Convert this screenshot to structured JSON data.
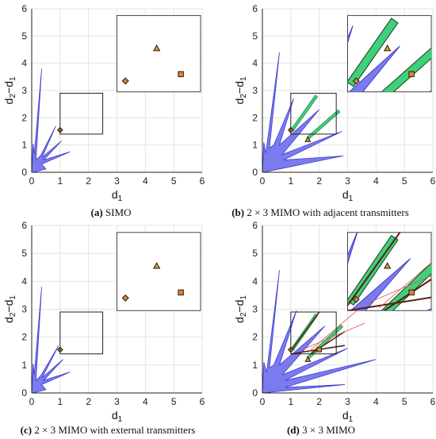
{
  "figure": {
    "captions": [
      {
        "letter": "(a)",
        "text": "SIMO"
      },
      {
        "letter": "(b)",
        "text": "2 × 3 MIMO with adjacent transmitters"
      },
      {
        "letter": "(c)",
        "text": "2 × 3 MIMO with external transmitters"
      },
      {
        "letter": "(d)",
        "text": "3 × 3 MIMO"
      }
    ]
  },
  "chart_data": [
    {
      "panel": "a",
      "type": "area",
      "xlabel": {
        "main": "d",
        "sub": "1"
      },
      "ylabel": {
        "main": "d",
        "sub": "2",
        "mid": "−d",
        "sub2": "1"
      },
      "xlim": [
        0,
        6
      ],
      "ylim": [
        0,
        6
      ],
      "xticks": [
        "0",
        "1",
        "2",
        "3",
        "4",
        "5",
        "6"
      ],
      "yticks": [
        "0",
        "1",
        "2",
        "3",
        "4",
        "5",
        "6"
      ],
      "grid": true,
      "zoom_box": {
        "x": [
          1.0,
          2.5
        ],
        "y": [
          1.4,
          2.9
        ]
      },
      "colors": {
        "region": "#7b7bef",
        "region_edge": "#3b3bd0",
        "green": "#3ed07a",
        "dark_line": "#5a1f12",
        "red_line": "#e05050"
      },
      "regions": [
        {
          "name": "blue",
          "poly": [
            [
              0,
              0
            ],
            [
              0.05,
              1.05
            ],
            [
              0.09,
              0.65
            ],
            [
              0.35,
              3.8
            ],
            [
              0.15,
              0.45
            ],
            [
              0.32,
              0.62
            ],
            [
              0.85,
              1.7
            ],
            [
              0.37,
              0.55
            ],
            [
              1.05,
              1.15
            ],
            [
              0.42,
              0.45
            ],
            [
              1.35,
              0.75
            ],
            [
              0.35,
              0.3
            ],
            [
              0.5,
              0.12
            ],
            [
              0.05,
              0
            ]
          ]
        }
      ],
      "green_strips": [],
      "lines": [],
      "markers": [
        {
          "shape": "diamond",
          "x": 1.0,
          "y": 1.55
        }
      ],
      "inset_markers": [
        {
          "shape": "diamond",
          "x": 3.3,
          "y": 3.35
        },
        {
          "shape": "triangle",
          "x": 4.4,
          "y": 4.55
        },
        {
          "shape": "square",
          "x": 5.25,
          "y": 3.6
        }
      ]
    },
    {
      "panel": "b",
      "type": "area",
      "xlabel": {
        "main": "d",
        "sub": "1"
      },
      "ylabel": {
        "main": "d",
        "sub": "2",
        "mid": "−d",
        "sub2": "1"
      },
      "xlim": [
        0,
        6
      ],
      "ylim": [
        0,
        6
      ],
      "xticks": [
        "0",
        "1",
        "2",
        "3",
        "4",
        "5",
        "6"
      ],
      "yticks": [
        "0",
        "1",
        "2",
        "3",
        "4",
        "5",
        "6"
      ],
      "grid": true,
      "zoom_box": {
        "x": [
          1.0,
          2.6
        ],
        "y": [
          1.4,
          2.9
        ]
      },
      "colors": {
        "region": "#7b7bef",
        "region_edge": "#3b3bd0",
        "green": "#3ed07a",
        "dark_line": "#5a1f12",
        "red_line": "#e05050"
      },
      "regions": [
        {
          "name": "blue",
          "poly": [
            [
              0,
              0
            ],
            [
              0.05,
              1.1
            ],
            [
              0.12,
              0.7
            ],
            [
              0.6,
              4.4
            ],
            [
              0.25,
              0.9
            ],
            [
              0.4,
              1.0
            ],
            [
              1.1,
              2.7
            ],
            [
              0.6,
              1.0
            ],
            [
              2.0,
              2.3
            ],
            [
              0.7,
              0.65
            ],
            [
              2.8,
              1.5
            ],
            [
              0.75,
              0.45
            ],
            [
              2.85,
              0.6
            ],
            [
              0.5,
              0.1
            ],
            [
              0.05,
              0
            ]
          ]
        }
      ],
      "green_strips": [
        {
          "from": [
            1.05,
            1.55
          ],
          "to": [
            1.9,
            2.8
          ],
          "width": 0.1
        },
        {
          "from": [
            1.6,
            1.25
          ],
          "to": [
            2.7,
            2.25
          ],
          "width": 0.1
        }
      ],
      "lines": [],
      "markers": [
        {
          "shape": "diamond",
          "x": 1.0,
          "y": 1.55
        },
        {
          "shape": "triangle",
          "x": 1.6,
          "y": 1.2
        }
      ],
      "inset_markers": [
        {
          "shape": "diamond",
          "x": 3.3,
          "y": 3.35
        },
        {
          "shape": "triangle",
          "x": 4.4,
          "y": 4.55
        },
        {
          "shape": "square",
          "x": 5.25,
          "y": 3.6
        }
      ]
    },
    {
      "panel": "c",
      "type": "area",
      "xlabel": {
        "main": "d",
        "sub": "1"
      },
      "ylabel": {
        "main": "d",
        "sub": "2",
        "mid": "−d",
        "sub2": "1"
      },
      "xlim": [
        0,
        6
      ],
      "ylim": [
        0,
        6
      ],
      "xticks": [
        "0",
        "1",
        "2",
        "3",
        "4",
        "5",
        "6"
      ],
      "yticks": [
        "0",
        "1",
        "2",
        "3",
        "4",
        "5",
        "6"
      ],
      "grid": true,
      "zoom_box": {
        "x": [
          1.0,
          2.5
        ],
        "y": [
          1.4,
          2.9
        ]
      },
      "colors": {
        "region": "#7b7bef",
        "region_edge": "#3b3bd0",
        "green": "#3ed07a",
        "dark_line": "#5a1f12",
        "red_line": "#e05050"
      },
      "regions": [
        {
          "name": "blue",
          "poly": [
            [
              0,
              0
            ],
            [
              0.05,
              1.05
            ],
            [
              0.09,
              0.65
            ],
            [
              0.35,
              3.8
            ],
            [
              0.15,
              0.45
            ],
            [
              0.32,
              0.62
            ],
            [
              0.95,
              1.7
            ],
            [
              0.37,
              0.55
            ],
            [
              1.1,
              1.2
            ],
            [
              0.42,
              0.45
            ],
            [
              1.35,
              0.75
            ],
            [
              0.35,
              0.3
            ],
            [
              0.5,
              0.12
            ],
            [
              0.05,
              0
            ]
          ]
        }
      ],
      "green_strips": [],
      "lines": [],
      "markers": [
        {
          "shape": "diamond",
          "x": 1.0,
          "y": 1.55
        }
      ],
      "inset_markers": [
        {
          "shape": "diamond",
          "x": 3.3,
          "y": 3.4
        },
        {
          "shape": "triangle",
          "x": 4.4,
          "y": 4.55
        },
        {
          "shape": "square",
          "x": 5.25,
          "y": 3.6
        }
      ]
    },
    {
      "panel": "d",
      "type": "area",
      "xlabel": {
        "main": "d",
        "sub": "1"
      },
      "ylabel": {
        "main": "d",
        "sub": "2",
        "mid": "−d",
        "sub2": "1"
      },
      "xlim": [
        0,
        6
      ],
      "ylim": [
        0,
        6
      ],
      "xticks": [
        "0",
        "1",
        "2",
        "3",
        "4",
        "5",
        "6"
      ],
      "yticks": [
        "0",
        "1",
        "2",
        "3",
        "4",
        "5",
        "6"
      ],
      "grid": true,
      "zoom_box": {
        "x": [
          1.0,
          2.6
        ],
        "y": [
          1.4,
          2.9
        ]
      },
      "colors": {
        "region": "#7b7bef",
        "region_edge": "#3b3bd0",
        "green": "#3ed07a",
        "dark_line": "#5a1f12",
        "red_line": "#e05050"
      },
      "regions": [
        {
          "name": "blue",
          "poly": [
            [
              0,
              0
            ],
            [
              0.05,
              1.1
            ],
            [
              0.15,
              0.75
            ],
            [
              0.6,
              4.4
            ],
            [
              0.25,
              0.9
            ],
            [
              0.4,
              1.0
            ],
            [
              1.2,
              2.95
            ],
            [
              0.6,
              1.0
            ],
            [
              2.2,
              2.4
            ],
            [
              0.7,
              0.65
            ],
            [
              3.0,
              1.6
            ],
            [
              0.8,
              0.45
            ],
            [
              4.0,
              1.2
            ],
            [
              0.8,
              0.2
            ],
            [
              2.9,
              0.3
            ],
            [
              0.5,
              0.05
            ],
            [
              0.05,
              0
            ]
          ]
        }
      ],
      "green_strips": [
        {
          "from": [
            1.05,
            1.55
          ],
          "to": [
            1.9,
            2.8
          ],
          "width": 0.1
        },
        {
          "from": [
            1.6,
            1.25
          ],
          "to": [
            2.8,
            2.4
          ],
          "width": 0.1
        }
      ],
      "lines": [
        {
          "color": "dark",
          "from": [
            1.0,
            1.5
          ],
          "to": [
            2.0,
            2.9
          ]
        },
        {
          "color": "dark",
          "from": [
            1.7,
            1.4
          ],
          "to": [
            2.9,
            2.2
          ]
        },
        {
          "color": "dark",
          "from": [
            1.0,
            1.4
          ],
          "to": [
            2.9,
            1.7
          ]
        },
        {
          "color": "red",
          "from": [
            1.6,
            1.45
          ],
          "to": [
            3.5,
            3.1
          ]
        },
        {
          "color": "red",
          "from": [
            1.4,
            1.55
          ],
          "to": [
            3.6,
            2.5
          ]
        }
      ],
      "markers": [
        {
          "shape": "diamond",
          "x": 1.0,
          "y": 1.55
        },
        {
          "shape": "triangle",
          "x": 1.6,
          "y": 1.2
        },
        {
          "shape": "square",
          "x": 2.0,
          "y": 1.55
        }
      ],
      "inset_markers": [
        {
          "shape": "diamond",
          "x": 3.3,
          "y": 3.35
        },
        {
          "shape": "triangle",
          "x": 4.4,
          "y": 4.55
        },
        {
          "shape": "square",
          "x": 5.25,
          "y": 3.6
        }
      ]
    }
  ]
}
